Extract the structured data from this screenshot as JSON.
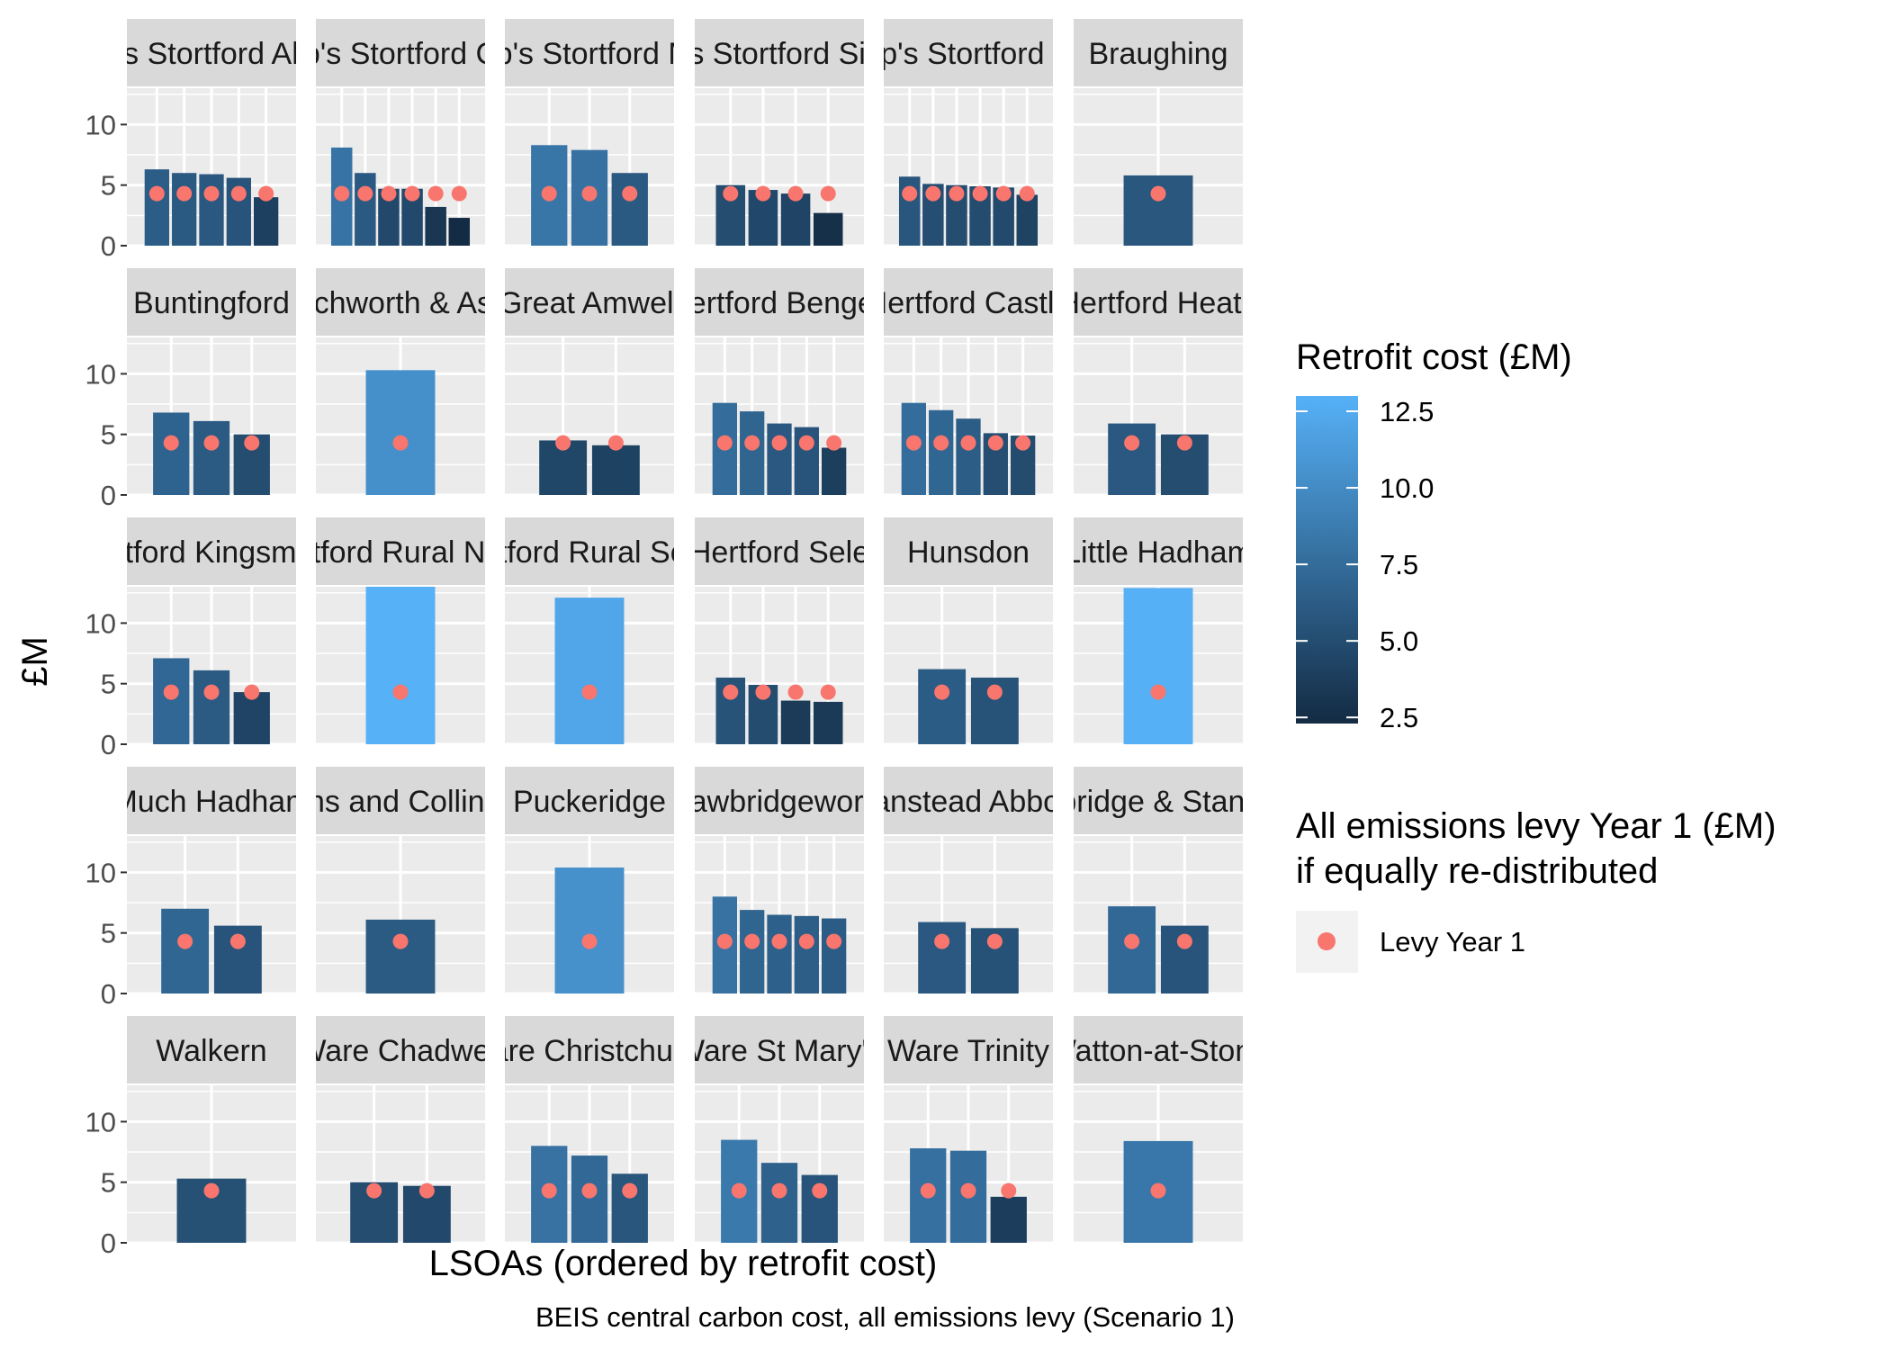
{
  "chart_data": {
    "type": "bar",
    "facets": [
      {
        "label": "Bishop's Stortford All Saints",
        "values": [
          6.3,
          6.0,
          5.9,
          5.6,
          4.0
        ]
      },
      {
        "label": "Bishop's Stortford Central",
        "values": [
          8.1,
          6.0,
          4.7,
          4.7,
          3.2,
          2.3
        ]
      },
      {
        "label": "Bishop's Stortford Meads",
        "values": [
          8.3,
          7.9,
          6.0
        ]
      },
      {
        "label": "Bishop's Stortford Silverleys",
        "values": [
          5.0,
          4.6,
          4.3,
          2.7
        ]
      },
      {
        "label": "Bishop's Stortford South",
        "values": [
          5.7,
          5.1,
          5.0,
          4.9,
          4.8,
          4.2
        ]
      },
      {
        "label": "Braughing",
        "values": [
          5.8
        ]
      },
      {
        "label": "Buntingford",
        "values": [
          6.8,
          6.1,
          5.0
        ]
      },
      {
        "label": "Datchworth & Aston",
        "values": [
          10.3
        ]
      },
      {
        "label": "Great Amwell",
        "values": [
          4.5,
          4.1
        ]
      },
      {
        "label": "Hertford Bengeo",
        "values": [
          7.6,
          6.9,
          5.9,
          5.6,
          3.9
        ]
      },
      {
        "label": "Hertford Castle",
        "values": [
          7.6,
          7.0,
          6.3,
          5.1,
          4.9
        ]
      },
      {
        "label": "Hertford Heath",
        "values": [
          5.9,
          5.0
        ]
      },
      {
        "label": "Hertford Kingsmead",
        "values": [
          7.1,
          6.1,
          4.3
        ]
      },
      {
        "label": "Hertford Rural North",
        "values": [
          13.0
        ]
      },
      {
        "label": "Hertford Rural South",
        "values": [
          12.1
        ]
      },
      {
        "label": "Hertford Sele",
        "values": [
          5.5,
          4.9,
          3.6,
          3.5
        ]
      },
      {
        "label": "Hunsdon",
        "values": [
          6.2,
          5.5
        ]
      },
      {
        "label": "Little Hadham",
        "values": [
          12.9
        ]
      },
      {
        "label": "Much Hadham",
        "values": [
          7.0,
          5.6
        ]
      },
      {
        "label": "Parkens and Collinswood",
        "values": [
          6.1
        ]
      },
      {
        "label": "Puckeridge",
        "values": [
          10.4
        ]
      },
      {
        "label": "Sawbridgeworth",
        "values": [
          8.0,
          6.9,
          6.5,
          6.4,
          6.2
        ]
      },
      {
        "label": "Stanstead Abbotts",
        "values": [
          5.9,
          5.4
        ]
      },
      {
        "label": "Stanbridge & Stanstead",
        "values": [
          7.2,
          5.6
        ]
      },
      {
        "label": "Walkern",
        "values": [
          5.3
        ]
      },
      {
        "label": "Ware Chadwell",
        "values": [
          5.0,
          4.7
        ]
      },
      {
        "label": "Ware Christchurch",
        "values": [
          8.0,
          7.2,
          5.7
        ]
      },
      {
        "label": "Ware St Mary's",
        "values": [
          8.5,
          6.6,
          5.6
        ]
      },
      {
        "label": "Ware Trinity",
        "values": [
          7.8,
          7.6,
          3.8
        ]
      },
      {
        "label": "Watton-at-Stone",
        "values": [
          8.4
        ]
      }
    ],
    "levy_value": 4.3,
    "ylim": [
      0,
      13
    ],
    "y_ticks": [
      0,
      5,
      10
    ],
    "ylabel": "£M",
    "xlabel": "LSOAs (ordered by retrofit cost)",
    "caption": "BEIS central carbon cost, all emissions levy (Scenario 1)",
    "fill_scale": {
      "title": "Retrofit cost (£M)",
      "range": [
        2.3,
        13.0
      ],
      "breaks": [
        "2.5",
        "5.0",
        "7.5",
        "10.0",
        "12.5"
      ],
      "low_color": "#132B43",
      "high_color": "#56B1F7"
    },
    "point_legend": {
      "title_line1": "All emissions levy Year 1 (£M)",
      "title_line2": "if equally re-distributed",
      "label": "Levy Year 1",
      "color": "#F8766D"
    },
    "panel_color": "#EBEBEB",
    "strip_color": "#D9D9D9",
    "grid": true,
    "legend_position": "right"
  }
}
